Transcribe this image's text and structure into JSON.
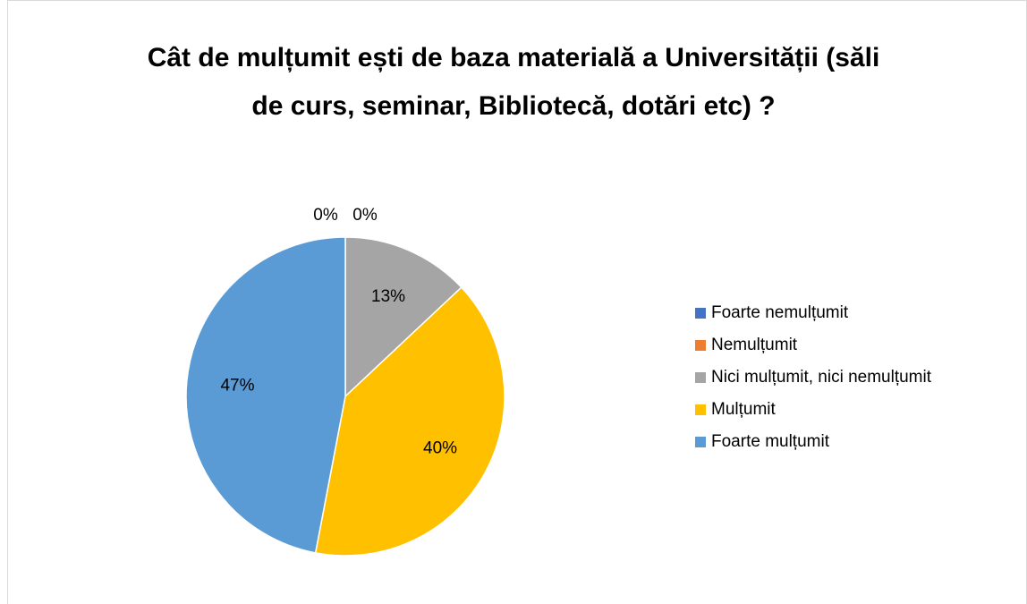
{
  "chart_data": {
    "type": "pie",
    "title": "Cât de mulțumit ești de baza materială a Universității (săli de curs, seminar, Bibliotecă, dotări etc) ?",
    "categories": [
      "Foarte nemulțumit",
      "Nemulțumit",
      "Nici mulțumit, nici nemulțumit",
      "Mulțumit",
      "Foarte mulțumit"
    ],
    "values": [
      0,
      0,
      13,
      40,
      47
    ],
    "value_labels": [
      "0%",
      "0%",
      "13%",
      "40%",
      "47%"
    ],
    "colors": [
      "#4472c4",
      "#ed7d31",
      "#a5a5a5",
      "#ffc000",
      "#5b9bd5"
    ],
    "legend": "right"
  }
}
